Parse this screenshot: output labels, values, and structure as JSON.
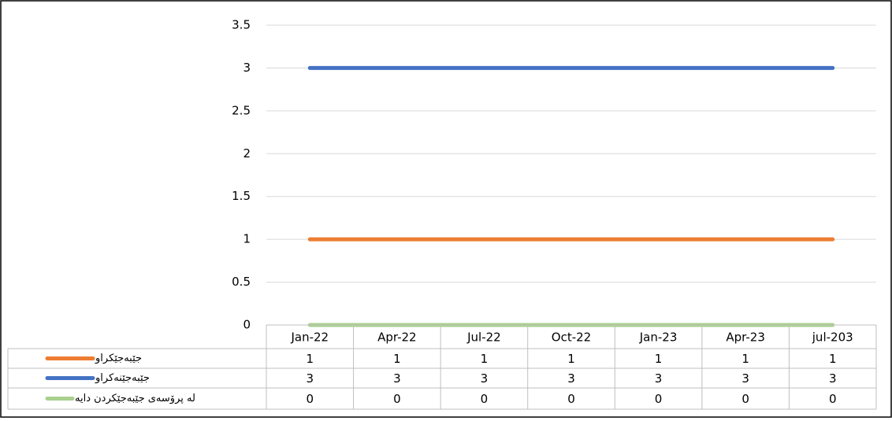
{
  "chart_data": {
    "type": "line",
    "categories": [
      "Jan-22",
      "Apr-22",
      "Jul-22",
      "Oct-22",
      "Jan-23",
      "Apr-23",
      "jul-203"
    ],
    "series": [
      {
        "name": "جێبەجێکراو",
        "color": "#ed7d31",
        "values": [
          1,
          1,
          1,
          1,
          1,
          1,
          1
        ]
      },
      {
        "name": "جێبەجێنەکراو",
        "color": "#4472c4",
        "values": [
          3,
          3,
          3,
          3,
          3,
          3,
          3
        ]
      },
      {
        "name": "لە پرۆسەی جێبەجێکردن دایە",
        "color": "#a9d18e",
        "values": [
          0,
          0,
          0,
          0,
          0,
          0,
          0
        ]
      }
    ],
    "ylim": [
      0,
      3.5
    ],
    "yticks": [
      0,
      0.5,
      1,
      1.5,
      2,
      2.5,
      3,
      3.5
    ],
    "grid": true,
    "data_table": true
  }
}
